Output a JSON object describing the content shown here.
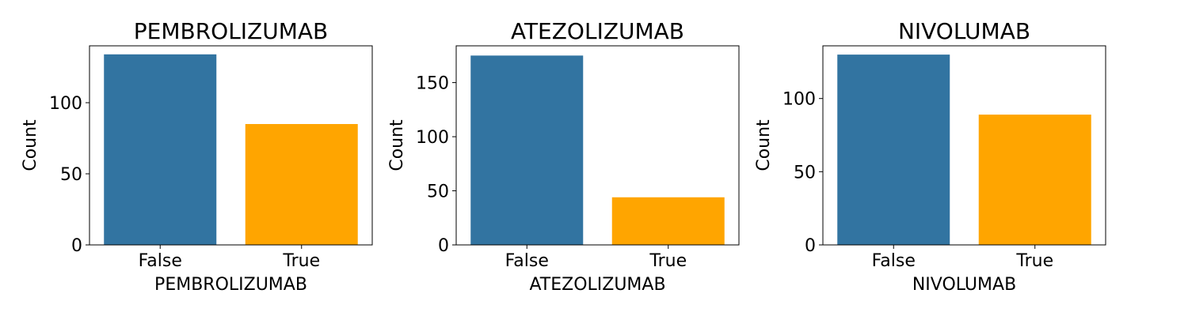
{
  "chart_data": [
    {
      "type": "bar",
      "title": "PEMBROLIZUMAB",
      "xlabel": "PEMBROLIZUMAB",
      "ylabel": "Count",
      "categories": [
        "False",
        "True"
      ],
      "values": [
        134,
        85
      ],
      "colors": [
        "#3274a1",
        "#ffa500"
      ],
      "ylim": [
        0,
        140
      ],
      "yticks": [
        0,
        50,
        100
      ],
      "grid": false
    },
    {
      "type": "bar",
      "title": "ATEZOLIZUMAB",
      "xlabel": "ATEZOLIZUMAB",
      "ylabel": "Count",
      "categories": [
        "False",
        "True"
      ],
      "values": [
        175,
        44
      ],
      "colors": [
        "#3274a1",
        "#ffa500"
      ],
      "ylim": [
        0,
        184
      ],
      "yticks": [
        0,
        50,
        100,
        150
      ],
      "grid": false
    },
    {
      "type": "bar",
      "title": "NIVOLUMAB",
      "xlabel": "NIVOLUMAB",
      "ylabel": "Count",
      "categories": [
        "False",
        "True"
      ],
      "values": [
        130,
        89
      ],
      "colors": [
        "#3274a1",
        "#ffa500"
      ],
      "ylim": [
        0,
        136
      ],
      "yticks": [
        0,
        50,
        100
      ],
      "grid": false
    }
  ]
}
